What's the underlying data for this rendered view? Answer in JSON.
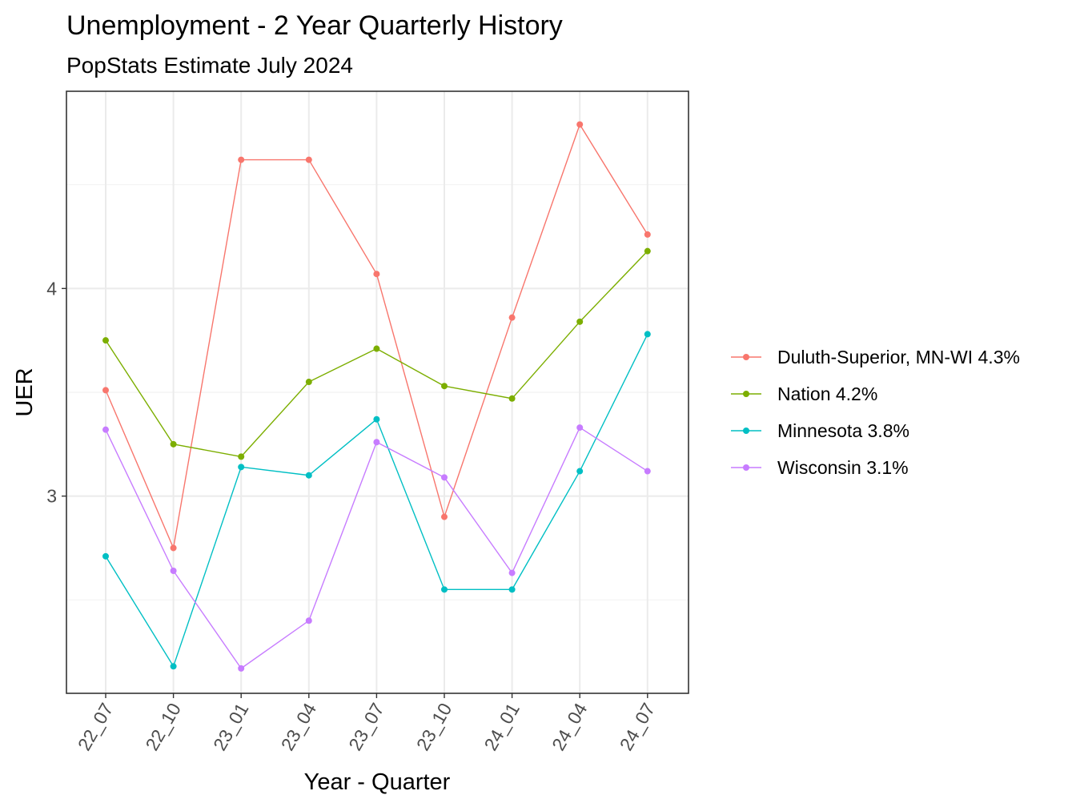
{
  "chart_data": {
    "type": "line",
    "title": "Unemployment - 2 Year Quarterly History",
    "subtitle": "PopStats Estimate July 2024",
    "xlabel": "Year - Quarter",
    "ylabel": "UER",
    "categories": [
      "22_07",
      "22_10",
      "23_01",
      "23_04",
      "23_07",
      "23_10",
      "24_01",
      "24_04",
      "24_07"
    ],
    "y_ticks": [
      3,
      4
    ],
    "ylim": [
      2.05,
      4.95
    ],
    "grid": true,
    "legend_position": "right",
    "series": [
      {
        "name": "Duluth-Superior, MN-WI 4.3%",
        "color": "#F8766D",
        "values": [
          3.51,
          2.75,
          4.62,
          4.62,
          4.07,
          2.9,
          3.86,
          4.79,
          4.26
        ]
      },
      {
        "name": "Nation 4.2%",
        "color": "#7CAE00",
        "values": [
          3.75,
          3.25,
          3.19,
          3.55,
          3.71,
          3.53,
          3.47,
          3.84,
          4.18
        ]
      },
      {
        "name": "Minnesota 3.8%",
        "color": "#00BFC4",
        "values": [
          2.71,
          2.18,
          3.14,
          3.1,
          3.37,
          2.55,
          2.55,
          3.12,
          3.78
        ]
      },
      {
        "name": "Wisconsin 3.1%",
        "color": "#C77CFF",
        "values": [
          3.32,
          2.64,
          2.17,
          2.4,
          3.26,
          3.09,
          2.63,
          3.33,
          3.12
        ]
      }
    ]
  }
}
